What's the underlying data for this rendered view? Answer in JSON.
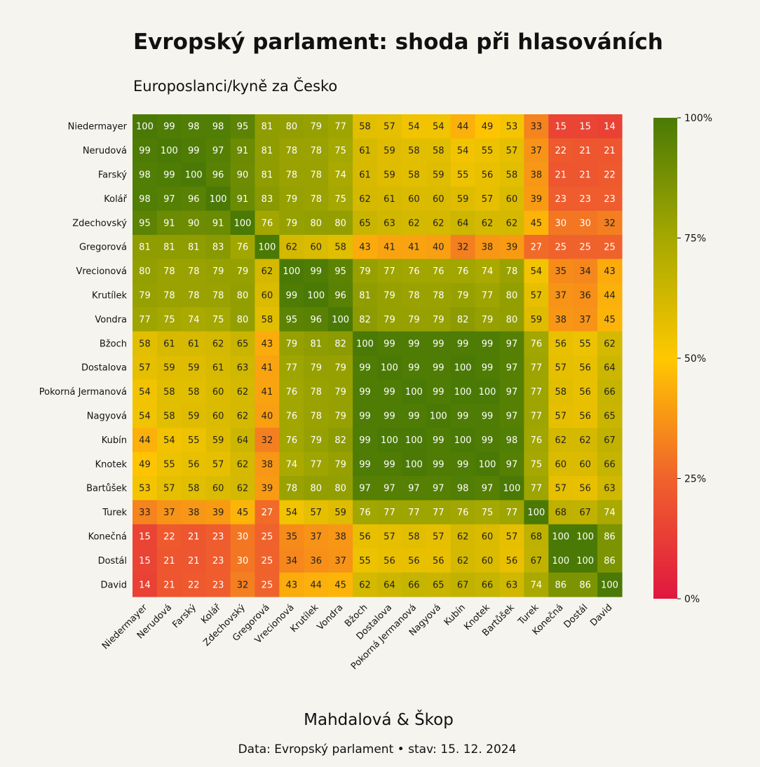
{
  "title": "Evropský parlament: shoda při hlasováních",
  "subtitle": "Europoslanci/kyně za Česko",
  "author": "Mahdalová & Škop",
  "source": "Data: Evropský parlament • stav: 15. 12. 2024",
  "colors": {
    "background": "#f6f4ef",
    "scale": [
      "#e0173f",
      "#f0622c",
      "#ffc800",
      "#a5a800",
      "#4a7a05"
    ]
  },
  "chart_data": {
    "type": "heatmap",
    "unit": "%",
    "vmin": 0,
    "vmax": 100,
    "colorbar_ticks": [
      "0%",
      "25%",
      "50%",
      "75%",
      "100%"
    ],
    "labels": [
      "Niedermayer",
      "Nerudová",
      "Farský",
      "Kolář",
      "Zdechovský",
      "Gregorová",
      "Vrecionová",
      "Krutílek",
      "Vondra",
      "Bžoch",
      "Dostalova",
      "Pokorná Jermanová",
      "Nagyová",
      "Kubín",
      "Knotek",
      "Bartůšek",
      "Turek",
      "Konečná",
      "Dostál",
      "David"
    ],
    "values": [
      [
        100,
        99,
        98,
        98,
        95,
        81,
        80,
        79,
        77,
        58,
        57,
        54,
        54,
        44,
        49,
        53,
        33,
        15,
        15,
        14
      ],
      [
        99,
        100,
        99,
        97,
        91,
        81,
        78,
        78,
        75,
        61,
        59,
        58,
        58,
        54,
        55,
        57,
        37,
        22,
        21,
        21
      ],
      [
        98,
        99,
        100,
        96,
        90,
        81,
        78,
        78,
        74,
        61,
        59,
        58,
        59,
        55,
        56,
        58,
        38,
        21,
        21,
        22
      ],
      [
        98,
        97,
        96,
        100,
        91,
        83,
        79,
        78,
        75,
        62,
        61,
        60,
        60,
        59,
        57,
        60,
        39,
        23,
        23,
        23
      ],
      [
        95,
        91,
        90,
        91,
        100,
        76,
        79,
        80,
        80,
        65,
        63,
        62,
        62,
        64,
        62,
        62,
        45,
        30,
        30,
        32
      ],
      [
        81,
        81,
        81,
        83,
        76,
        100,
        62,
        60,
        58,
        43,
        41,
        41,
        40,
        32,
        38,
        39,
        27,
        25,
        25,
        25
      ],
      [
        80,
        78,
        78,
        79,
        79,
        62,
        100,
        99,
        95,
        79,
        77,
        76,
        76,
        76,
        74,
        78,
        54,
        35,
        34,
        43
      ],
      [
        79,
        78,
        78,
        78,
        80,
        60,
        99,
        100,
        96,
        81,
        79,
        78,
        78,
        79,
        77,
        80,
        57,
        37,
        36,
        44
      ],
      [
        77,
        75,
        74,
        75,
        80,
        58,
        95,
        96,
        100,
        82,
        79,
        79,
        79,
        82,
        79,
        80,
        59,
        38,
        37,
        45
      ],
      [
        58,
        61,
        61,
        62,
        65,
        43,
        79,
        81,
        82,
        100,
        99,
        99,
        99,
        99,
        99,
        97,
        76,
        56,
        55,
        62
      ],
      [
        57,
        59,
        59,
        61,
        63,
        41,
        77,
        79,
        79,
        99,
        100,
        99,
        99,
        100,
        99,
        97,
        77,
        57,
        56,
        64
      ],
      [
        54,
        58,
        58,
        60,
        62,
        41,
        76,
        78,
        79,
        99,
        99,
        100,
        99,
        100,
        100,
        97,
        77,
        58,
        56,
        66
      ],
      [
        54,
        58,
        59,
        60,
        62,
        40,
        76,
        78,
        79,
        99,
        99,
        99,
        100,
        99,
        99,
        97,
        77,
        57,
        56,
        65
      ],
      [
        44,
        54,
        55,
        59,
        64,
        32,
        76,
        79,
        82,
        99,
        100,
        100,
        99,
        100,
        99,
        98,
        76,
        62,
        62,
        67
      ],
      [
        49,
        55,
        56,
        57,
        62,
        38,
        74,
        77,
        79,
        99,
        99,
        100,
        99,
        99,
        100,
        97,
        75,
        60,
        60,
        66
      ],
      [
        53,
        57,
        58,
        60,
        62,
        39,
        78,
        80,
        80,
        97,
        97,
        97,
        97,
        98,
        97,
        100,
        77,
        57,
        56,
        63
      ],
      [
        33,
        37,
        38,
        39,
        45,
        27,
        54,
        57,
        59,
        76,
        77,
        77,
        77,
        76,
        75,
        77,
        100,
        68,
        67,
        74
      ],
      [
        15,
        22,
        21,
        23,
        30,
        25,
        35,
        37,
        38,
        56,
        57,
        58,
        57,
        62,
        60,
        57,
        68,
        100,
        100,
        86
      ],
      [
        15,
        21,
        21,
        23,
        30,
        25,
        34,
        36,
        37,
        55,
        56,
        56,
        56,
        62,
        60,
        56,
        67,
        100,
        100,
        86
      ],
      [
        14,
        21,
        22,
        23,
        32,
        25,
        43,
        44,
        45,
        62,
        64,
        66,
        65,
        67,
        66,
        63,
        74,
        86,
        86,
        100
      ]
    ]
  }
}
